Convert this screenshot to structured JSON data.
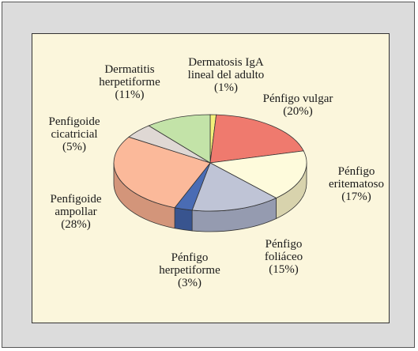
{
  "chart_data": {
    "type": "pie",
    "style": "3d",
    "slices": [
      {
        "label_lines": [
          "Dermatosis IgA",
          "lineal del adulto"
        ],
        "percent_text": "(1%)",
        "value": 1,
        "color": "#f3f07a",
        "side_color": "#c9c65d"
      },
      {
        "label_lines": [
          "Pénfigo vulgar"
        ],
        "percent_text": "(20%)",
        "value": 20,
        "color": "#ef7a6e",
        "side_color": "#c6625a"
      },
      {
        "label_lines": [
          "Pénfigo",
          "eritematoso"
        ],
        "percent_text": "(17%)",
        "value": 17,
        "color": "#fefbdc",
        "side_color": "#d8d3ad"
      },
      {
        "label_lines": [
          "Pénfigo",
          "foliáceo"
        ],
        "percent_text": "(15%)",
        "value": 15,
        "color": "#bfc4d6",
        "side_color": "#959bb0"
      },
      {
        "label_lines": [
          "Pénfigo",
          "herpetiforme"
        ],
        "percent_text": "(3%)",
        "value": 3,
        "color": "#4a6cb4",
        "side_color": "#38548f"
      },
      {
        "label_lines": [
          "Penfigoide",
          "ampollar"
        ],
        "percent_text": "(28%)",
        "value": 28,
        "color": "#fbb99a",
        "side_color": "#d3957a"
      },
      {
        "label_lines": [
          "Penfigoide",
          "cicatricial"
        ],
        "percent_text": "(5%)",
        "value": 5,
        "color": "#dfd8d4",
        "side_color": "#b5aea9"
      },
      {
        "label_lines": [
          "Dermatitis",
          "herpetiforme"
        ],
        "percent_text": "(11%)",
        "value": 11,
        "color": "#c3e3a8",
        "side_color": "#9dbd86"
      }
    ]
  }
}
